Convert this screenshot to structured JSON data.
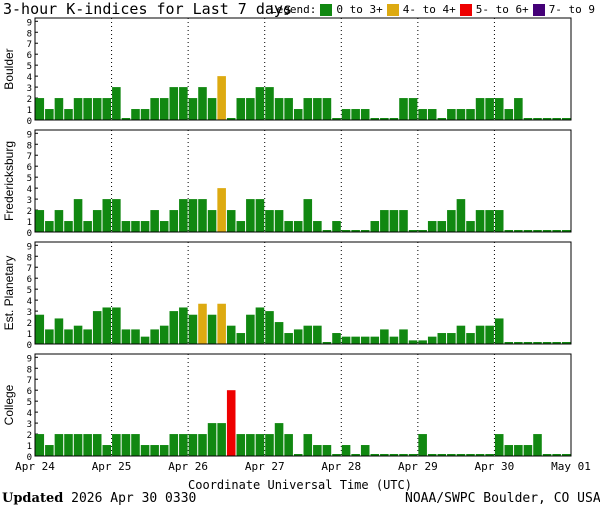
{
  "title": "3-hour K-indices for Last 7 days",
  "legend": {
    "label": "Legend:",
    "items": [
      {
        "label": "0 to 3+",
        "color": "#118811"
      },
      {
        "label": "4- to 4+",
        "color": "#ddaa11"
      },
      {
        "label": "5- to 6+",
        "color": "#ee0000"
      },
      {
        "label": "7- to 9",
        "color": "#440077"
      }
    ]
  },
  "footer": {
    "updated_label": "Updated",
    "updated_value": "2026 Apr 30 0330",
    "source": "NOAA/SWPC Boulder, CO USA"
  },
  "chart_data": {
    "type": "bar",
    "xlabel": "Coordinate Universal Time (UTC)",
    "x_ticks": [
      "Apr 24",
      "Apr 25",
      "Apr 26",
      "Apr 27",
      "Apr 28",
      "Apr 29",
      "Apr 30",
      "May 01"
    ],
    "ylim": [
      0,
      9
    ],
    "y_ticks": [
      "0",
      "1",
      "2",
      "3",
      "4",
      "5",
      "6",
      "7",
      "8",
      "9"
    ],
    "bins_per_day": 8,
    "grid": "dotted",
    "panels": [
      {
        "name": "Boulder",
        "values": [
          2,
          1,
          2,
          1,
          2,
          2,
          2,
          2,
          3,
          0,
          1,
          1,
          2,
          2,
          3,
          3,
          2,
          3,
          2,
          4,
          0,
          2,
          2,
          3,
          3,
          2,
          2,
          1,
          2,
          2,
          2,
          0,
          1,
          1,
          1,
          0,
          0,
          0,
          2,
          2,
          1,
          1,
          0,
          1,
          1,
          1,
          2,
          2,
          2,
          1,
          2,
          0,
          0,
          0,
          0,
          0
        ]
      },
      {
        "name": "Fredericksburg",
        "values": [
          2,
          1,
          2,
          1,
          3,
          1,
          2,
          3,
          3,
          1,
          1,
          1,
          2,
          1,
          2,
          3,
          3,
          3,
          2,
          4,
          2,
          1,
          3,
          3,
          2,
          2,
          1,
          1,
          3,
          1,
          0,
          1,
          0,
          0,
          0,
          1,
          2,
          2,
          2,
          0,
          0,
          1,
          1,
          2,
          3,
          1,
          2,
          2,
          2,
          0,
          0,
          0,
          0,
          0,
          0,
          0
        ]
      },
      {
        "name": "Est. Planetary",
        "values": [
          2.67,
          1.33,
          2.33,
          1.33,
          1.67,
          1.33,
          3.0,
          3.33,
          3.33,
          1.33,
          1.33,
          0.67,
          1.33,
          1.67,
          3.0,
          3.33,
          2.67,
          3.67,
          2.67,
          3.67,
          1.67,
          1.0,
          2.67,
          3.33,
          3.0,
          2.0,
          1.0,
          1.33,
          1.67,
          1.67,
          0.0,
          1.0,
          0.67,
          0.67,
          0.67,
          0.67,
          1.33,
          0.67,
          1.33,
          0.33,
          0.33,
          0.67,
          1.0,
          1.0,
          1.67,
          1.0,
          1.67,
          1.67,
          2.33,
          0,
          0,
          0,
          0,
          0,
          0,
          0
        ]
      },
      {
        "name": "College",
        "values": [
          2,
          1,
          2,
          2,
          2,
          2,
          2,
          1,
          2,
          2,
          2,
          1,
          1,
          1,
          2,
          2,
          2,
          2,
          3,
          3,
          6,
          2,
          2,
          2,
          2,
          3,
          2,
          0,
          2,
          1,
          1,
          0,
          1,
          0,
          1,
          0,
          0,
          0,
          0,
          0,
          2,
          0,
          0,
          0,
          0,
          0,
          0,
          0,
          2,
          1,
          1,
          1,
          2,
          0,
          0,
          0
        ]
      }
    ]
  }
}
